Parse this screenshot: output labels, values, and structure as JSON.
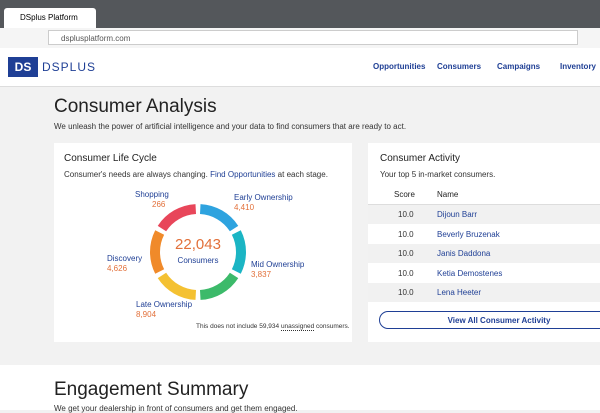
{
  "browser": {
    "tab_title": "DSplus Platform",
    "url": "dsplusplatform.com"
  },
  "nav": {
    "logo_mark": "DS",
    "logo_text": "DSPLUS",
    "items": [
      "Opportunities",
      "Consumers",
      "Campaigns",
      "Inventory"
    ]
  },
  "page": {
    "title": "Consumer Analysis",
    "subtitle": "We unleash the power of artificial intelligence and your data to find consumers that are ready to act."
  },
  "life_cycle": {
    "title": "Consumer Life Cycle",
    "description": [
      "Consumer's needs are always changing.",
      "Find Opportunities",
      "at each stage."
    ],
    "total": "22,043",
    "total_label": "Consumers",
    "stages": [
      {
        "name": "Shopping",
        "value": "266"
      },
      {
        "name": "Early Ownership",
        "value": "4,410"
      },
      {
        "name": "Mid Ownership",
        "value": "3,837"
      },
      {
        "name": "Late Ownership",
        "value": "8,904"
      },
      {
        "name": "Discovery",
        "value": "4,626"
      }
    ],
    "footnote": [
      "This does not include 59,934",
      "unassigned",
      "consumers."
    ]
  },
  "activity": {
    "title": "Consumer Activity",
    "subtitle": "Your top 5 in-market consumers.",
    "header": [
      "Score",
      "Name"
    ],
    "rows": [
      [
        "10.0",
        "Dijoun Barr"
      ],
      [
        "10.0",
        "Beverly Bruzenak"
      ],
      [
        "10.0",
        "Janis Daddona"
      ],
      [
        "10.0",
        "Ketia Demostenes"
      ],
      [
        "10.0",
        "Lena Heeter"
      ]
    ],
    "button": "View All Consumer Activity"
  },
  "engagement": {
    "title": "Engagement Summary",
    "subtitle": "We get your dealership in front of consumers and get them engaged."
  }
}
